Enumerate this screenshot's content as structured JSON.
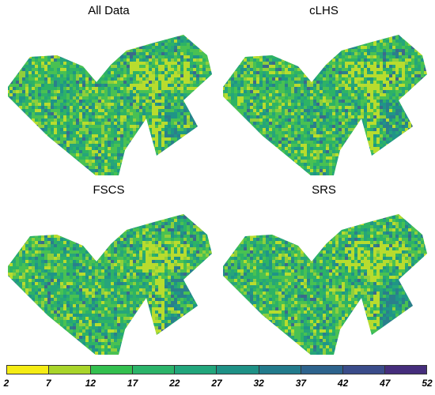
{
  "panels": [
    {
      "title": "All Data"
    },
    {
      "title": "cLHS"
    },
    {
      "title": "FSCS"
    },
    {
      "title": "SRS"
    }
  ],
  "legend": {
    "ticks": [
      "2",
      "7",
      "12",
      "17",
      "22",
      "27",
      "32",
      "37",
      "42",
      "47",
      "52"
    ],
    "colors": [
      "#f5ec14",
      "#a9d52a",
      "#33c04f",
      "#2bb46a",
      "#22a67c",
      "#1e9186",
      "#227b8c",
      "#2d638d",
      "#3a4c8a",
      "#452d7c",
      "#44045a"
    ]
  }
}
